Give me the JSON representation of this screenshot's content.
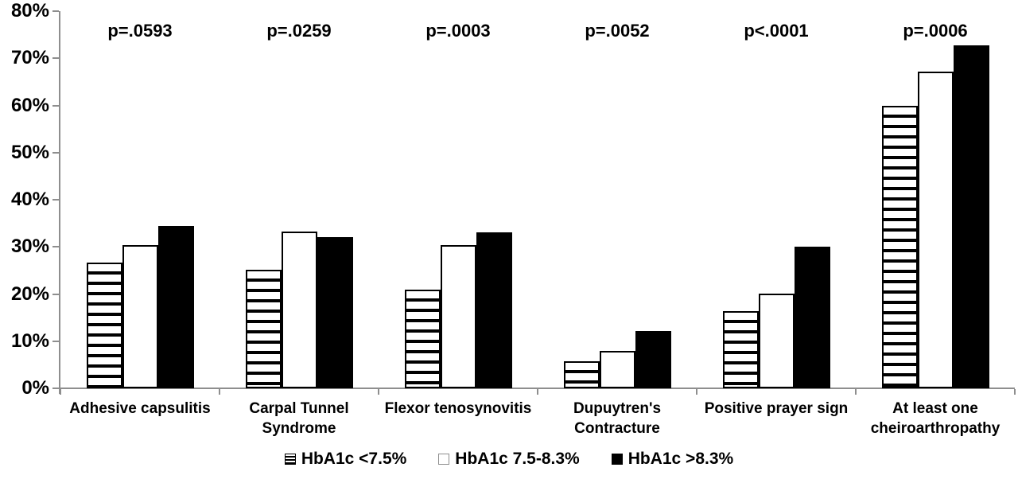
{
  "chart_data": {
    "type": "bar",
    "title": "",
    "xlabel": "",
    "ylabel": "",
    "ylim": [
      0,
      80
    ],
    "ytick_step": 10,
    "ytick_labels": [
      "0%",
      "10%",
      "20%",
      "30%",
      "40%",
      "50%",
      "60%",
      "70%",
      "80%"
    ],
    "grid": false,
    "legend_position": "bottom",
    "categories": [
      "Adhesive capsulitis",
      "Carpal Tunnel\nSyndrome",
      "Flexor tenosynovitis",
      "Dupuytren's\nContracture",
      "Positive prayer sign",
      "At least one\ncheiroarthropathy"
    ],
    "series": [
      {
        "name": "HbA1c <7.5%",
        "pattern": "horizontal-stripes",
        "values": [
          26.7,
          25.1,
          21.0,
          5.8,
          16.3,
          59.9
        ]
      },
      {
        "name": "HbA1c 7.5-8.3%",
        "pattern": "white",
        "values": [
          30.4,
          33.3,
          30.4,
          8.0,
          20.1,
          67.2
        ]
      },
      {
        "name": "HbA1c >8.3%",
        "pattern": "black",
        "values": [
          34.5,
          32.1,
          33.1,
          12.2,
          30.0,
          72.7
        ]
      }
    ],
    "p_values": [
      "p=.0593",
      "p=.0259",
      "p=.0003",
      "p=.0052",
      "p<.0001",
      "p=.0006"
    ],
    "colors": {
      "axis": "#8e8e8e",
      "bar_outline": "#000000",
      "bar_fill_black": "#000000",
      "bar_fill_white": "#ffffff",
      "text": "#000000",
      "background": "#ffffff"
    }
  }
}
